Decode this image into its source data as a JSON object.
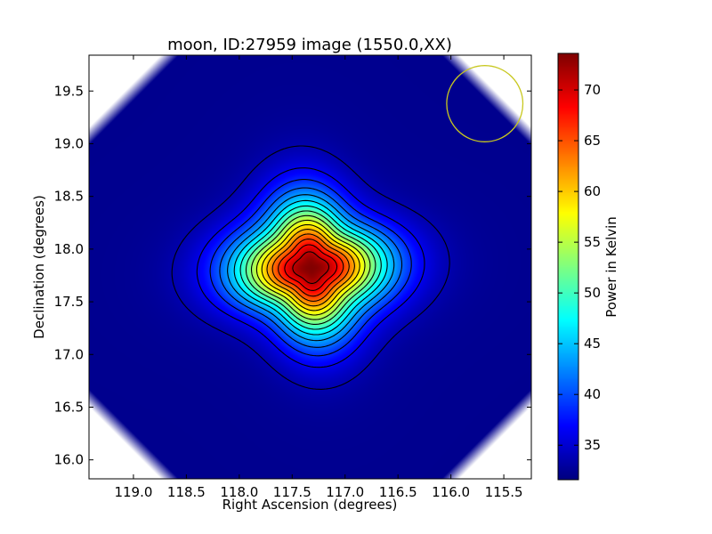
{
  "chart_data": {
    "type": "heatmap",
    "title": "moon, ID:27959 image (1550.0,XX)",
    "xlabel": "Right Ascension (degrees)",
    "ylabel": "Declination (degrees)",
    "xlim": [
      119.42,
      115.24
    ],
    "ylim": [
      15.82,
      19.84
    ],
    "x_reversed": true,
    "xticks": [
      119.0,
      118.5,
      118.0,
      117.5,
      117.0,
      116.5,
      116.0,
      115.5
    ],
    "xtick_labels": [
      "119.0",
      "118.5",
      "118.0",
      "117.5",
      "117.0",
      "116.5",
      "116.0",
      "115.5"
    ],
    "yticks": [
      16.0,
      16.5,
      17.0,
      17.5,
      18.0,
      18.5,
      19.0,
      19.5
    ],
    "ytick_labels": [
      "16.0",
      "16.5",
      "17.0",
      "17.5",
      "18.0",
      "18.5",
      "19.0",
      "19.5"
    ],
    "colormap": "jet",
    "colorbar": {
      "label": "Power in Kelvin",
      "min": 31.6,
      "max": 73.6,
      "ticks": [
        35,
        40,
        45,
        50,
        55,
        60,
        65,
        70
      ],
      "tick_labels": [
        "35",
        "40",
        "45",
        "50",
        "55",
        "60",
        "65",
        "70"
      ]
    },
    "source": {
      "ra": 117.32,
      "dec": 17.82,
      "peak": 73.5,
      "background": 32.2
    },
    "contour_levels": [
      33.5,
      36,
      38.5,
      41,
      43.5,
      46,
      48.5,
      51,
      53.5,
      56,
      58.5,
      61,
      63.5,
      66,
      68.5,
      71
    ],
    "contour_color": "#000000",
    "beam_marker": {
      "ra": 115.68,
      "dec": 19.38,
      "radius_deg": 0.36,
      "color": "#c8c820"
    },
    "grid": false
  }
}
